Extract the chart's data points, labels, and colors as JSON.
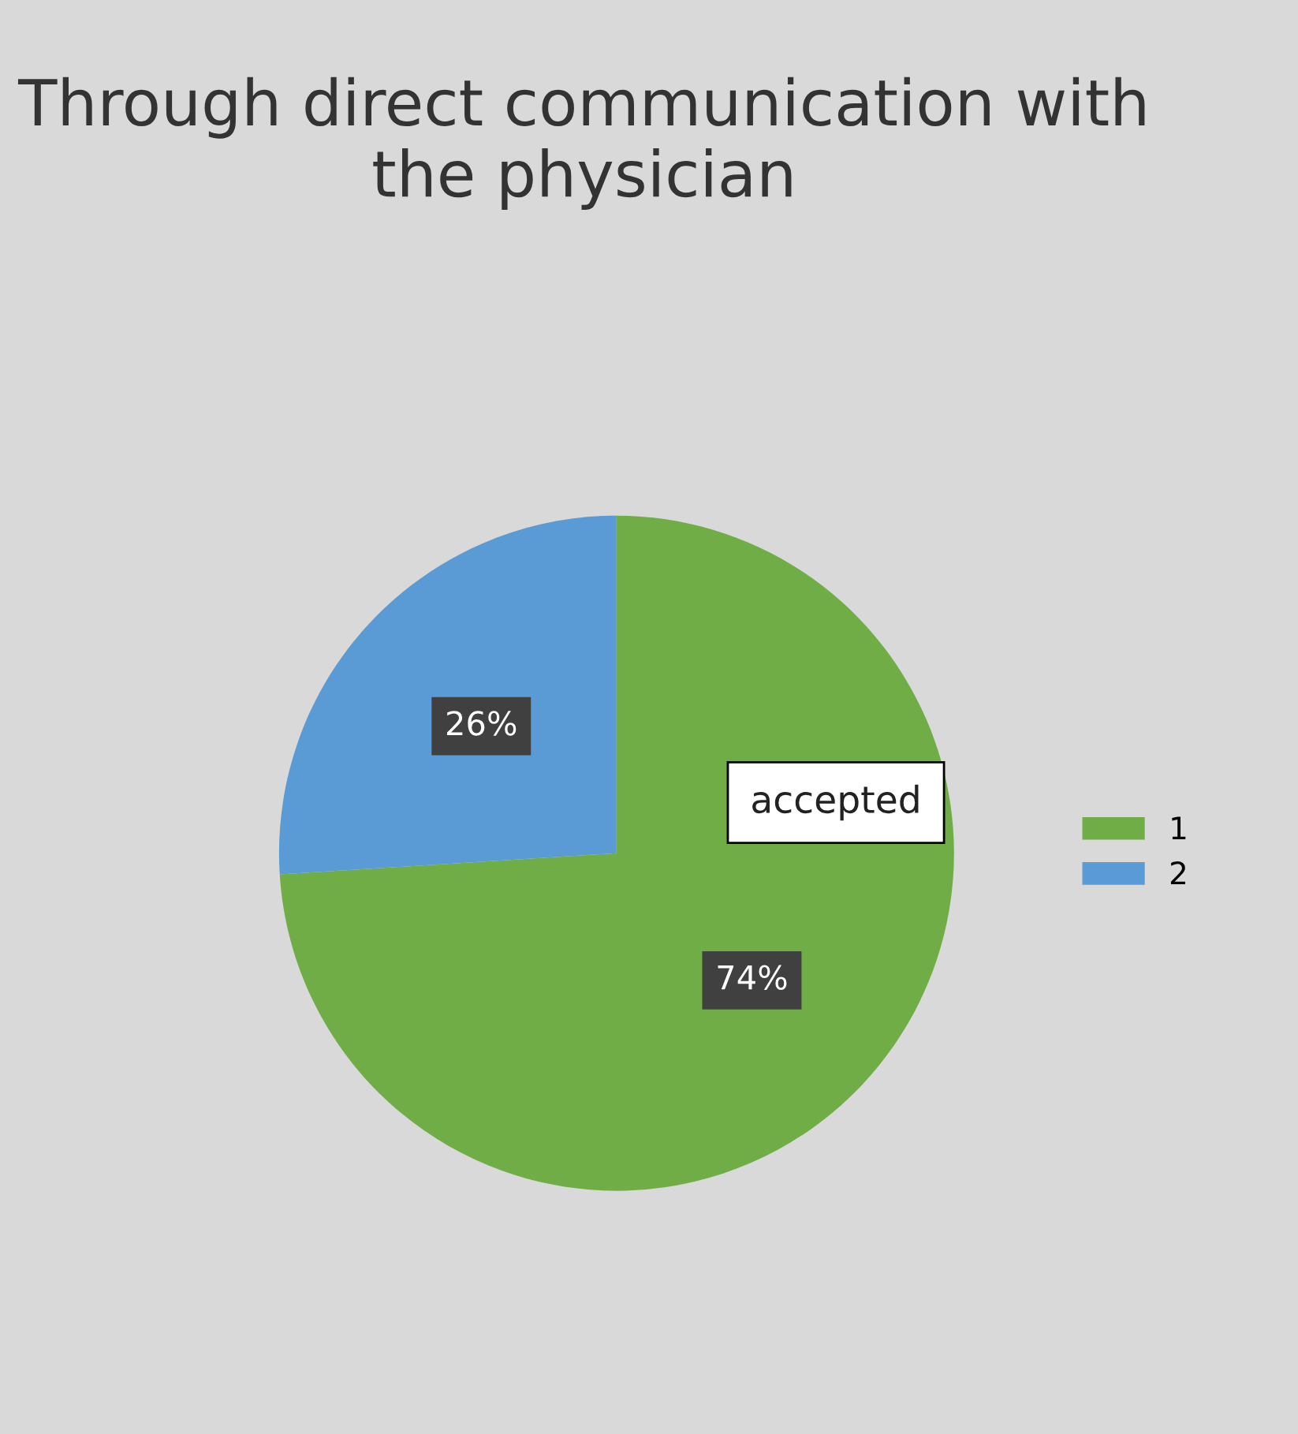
{
  "chart_data": {
    "type": "pie",
    "title": "Through direct communication with\nthe physician",
    "categories": [
      "1",
      "2"
    ],
    "values": [
      74,
      26
    ],
    "colors": [
      "#70ad47",
      "#5b9bd5"
    ],
    "value_labels": [
      "74%",
      "26%"
    ],
    "annotations": [
      "accepted"
    ],
    "legend": "right"
  }
}
